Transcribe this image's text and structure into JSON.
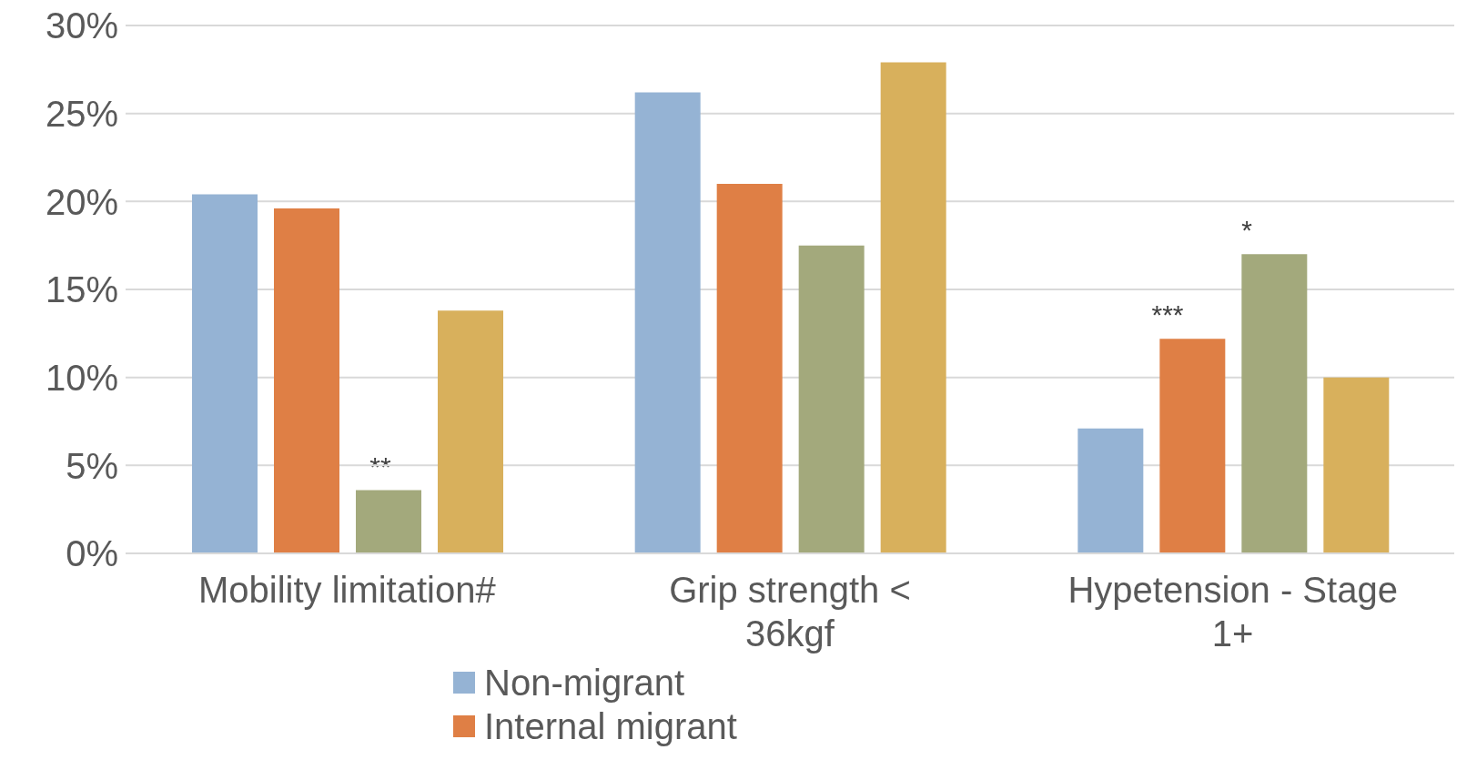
{
  "chart_data": {
    "type": "bar",
    "categories": [
      "Mobility limitation#",
      "Grip strength < 36kgf",
      "Hypetension - Stage 1+"
    ],
    "series": [
      {
        "name": "Non-migrant",
        "color": "#95b3d4",
        "values": [
          20.4,
          26.2,
          7.1
        ]
      },
      {
        "name": "Internal migrant",
        "color": "#df7f45",
        "values": [
          19.6,
          21.0,
          12.2
        ]
      },
      {
        "color": "#a3a97c",
        "values": [
          3.6,
          17.5,
          17.0
        ]
      },
      {
        "color": "#d8b05c",
        "values": [
          13.8,
          27.9,
          10.0
        ]
      }
    ],
    "ylim": [
      0,
      30
    ],
    "yticks": [
      {
        "value": 0,
        "label": "0%"
      },
      {
        "value": 5,
        "label": "5%"
      },
      {
        "value": 10,
        "label": "10%"
      },
      {
        "value": 15,
        "label": "15%"
      },
      {
        "value": 20,
        "label": "20%"
      },
      {
        "value": 25,
        "label": "25%"
      },
      {
        "value": 30,
        "label": "30%"
      }
    ],
    "grid": "y",
    "legend": "bottom",
    "annotations": [
      "**",
      "***",
      "*"
    ]
  }
}
